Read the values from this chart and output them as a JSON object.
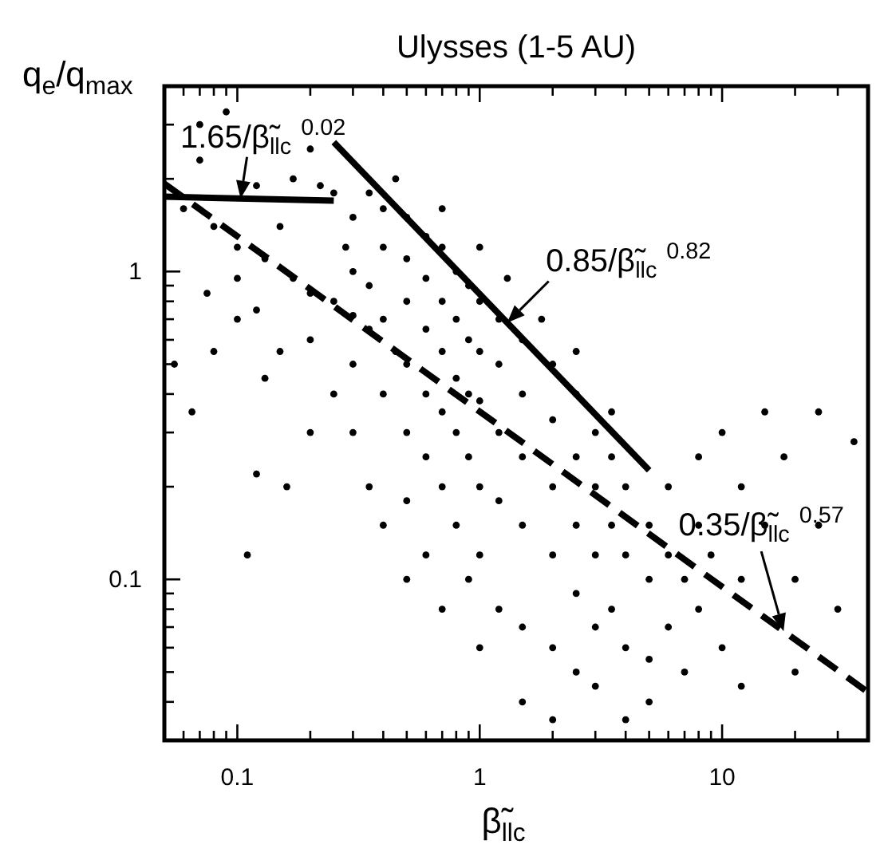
{
  "chart_data": {
    "type": "scatter",
    "title": "Ulysses (1-5 AU)",
    "xlabel": "β̃$_{llc}$",
    "ylabel": "q$_{e}$/q$_{max}$",
    "log": "xy",
    "xlim": [
      0.05,
      40
    ],
    "ylim": [
      0.03,
      4
    ],
    "xticks": [
      {
        "value": 0.06,
        "label": null
      },
      {
        "value": 0.07,
        "label": null
      },
      {
        "value": 0.08,
        "label": null
      },
      {
        "value": 0.09,
        "label": null
      },
      0.1,
      {
        "value": 0.2,
        "label": null
      },
      {
        "value": 0.3,
        "label": null
      },
      {
        "value": 0.4,
        "label": null
      },
      {
        "value": 0.5,
        "label": null
      },
      {
        "value": 0.6,
        "label": null
      },
      {
        "value": 0.7,
        "label": null
      },
      {
        "value": 0.8,
        "label": null
      },
      {
        "value": 0.9,
        "label": null
      },
      1,
      {
        "value": 2,
        "label": null
      },
      {
        "value": 3,
        "label": null
      },
      {
        "value": 4,
        "label": null
      },
      {
        "value": 5,
        "label": null
      },
      {
        "value": 6,
        "label": null
      },
      {
        "value": 7,
        "label": null
      },
      {
        "value": 8,
        "label": null
      },
      {
        "value": 9,
        "label": null
      },
      10,
      {
        "value": 20,
        "label": null
      },
      {
        "value": 30,
        "label": null
      },
      {
        "value": 40,
        "label": null
      }
    ],
    "yticks": [
      {
        "value": 0.03,
        "label": null
      },
      {
        "value": 0.04,
        "label": null
      },
      {
        "value": 0.05,
        "label": null
      },
      {
        "value": 0.06,
        "label": null
      },
      {
        "value": 0.07,
        "label": null
      },
      {
        "value": 0.08,
        "label": null
      },
      {
        "value": 0.09,
        "label": null
      },
      0.1,
      {
        "value": 0.2,
        "label": null
      },
      {
        "value": 0.3,
        "label": null
      },
      {
        "value": 0.4,
        "label": null
      },
      {
        "value": 0.5,
        "label": null
      },
      {
        "value": 0.6,
        "label": null
      },
      {
        "value": 0.7,
        "label": null
      },
      {
        "value": 0.8,
        "label": null
      },
      {
        "value": 0.9,
        "label": null
      },
      1,
      {
        "value": 2,
        "label": null
      },
      {
        "value": 3,
        "label": null
      },
      {
        "value": 4,
        "label": null
      }
    ],
    "series": [
      {
        "marker": "circle",
        "color": "#000000",
        "x": [
          0.07,
          0.09,
          0.07,
          0.12,
          0.2,
          0.17,
          0.22,
          0.15,
          0.075,
          0.08,
          0.055,
          0.065,
          0.1,
          0.1,
          0.12,
          0.13,
          0.15,
          0.2,
          0.12,
          0.16,
          0.2,
          0.25,
          0.11,
          0.06,
          0.08,
          0.1,
          0.13,
          0.17,
          0.2,
          0.25,
          0.3,
          0.35,
          0.45,
          0.3,
          0.3,
          0.3,
          0.3,
          0.35,
          0.35,
          0.35,
          0.4,
          0.4,
          0.4,
          0.4,
          0.4,
          0.5,
          0.5,
          0.5,
          0.5,
          0.5,
          0.5,
          0.5,
          0.6,
          0.6,
          0.6,
          0.6,
          0.6,
          0.6,
          0.7,
          0.7,
          0.7,
          0.7,
          0.7,
          0.7,
          0.8,
          0.8,
          0.8,
          0.8,
          0.8,
          0.9,
          0.9,
          0.9,
          0.9,
          0.9,
          1,
          1,
          1,
          1,
          1,
          1,
          1.2,
          1.2,
          1.2,
          1.2,
          1.2,
          1.5,
          1.5,
          1.5,
          1.5,
          1.5,
          1.5,
          2,
          2,
          2,
          2,
          2,
          2,
          2.5,
          2.5,
          2.5,
          2.5,
          2.5,
          3,
          3,
          3,
          3,
          3,
          3.5,
          3.5,
          3.5,
          4,
          4,
          4,
          4,
          5,
          5,
          5,
          5,
          6,
          6,
          6,
          7,
          7,
          8,
          8,
          8,
          9,
          10,
          10,
          12,
          12,
          12,
          15,
          15,
          18,
          20,
          20,
          25,
          25,
          30,
          35,
          0.25,
          0.28,
          0.45,
          0.7,
          1,
          1.3,
          1.8,
          2.5,
          3.5
        ],
        "values": [
          3.0,
          3.3,
          2.3,
          1.9,
          2.5,
          2.0,
          1.9,
          1.4,
          0.85,
          0.55,
          0.5,
          0.35,
          0.7,
          0.95,
          0.75,
          0.45,
          0.55,
          0.6,
          0.22,
          0.2,
          0.3,
          0.4,
          0.12,
          1.6,
          1.4,
          1.2,
          1.1,
          0.95,
          0.85,
          0.8,
          0.72,
          0.65,
          0.55,
          1.5,
          1.0,
          0.5,
          0.3,
          1.8,
          0.9,
          0.2,
          1.6,
          1.2,
          0.7,
          0.4,
          0.15,
          1.5,
          1.1,
          0.8,
          0.5,
          0.3,
          0.18,
          0.1,
          1.3,
          0.95,
          0.65,
          0.4,
          0.25,
          0.12,
          1.2,
          0.8,
          0.55,
          0.35,
          0.2,
          0.08,
          1.0,
          0.7,
          0.45,
          0.3,
          0.15,
          0.9,
          0.6,
          0.4,
          0.25,
          0.1,
          0.8,
          0.55,
          0.38,
          0.2,
          0.12,
          0.06,
          0.7,
          0.5,
          0.3,
          0.18,
          0.08,
          0.6,
          0.4,
          0.25,
          0.15,
          0.07,
          0.04,
          0.5,
          0.33,
          0.2,
          0.12,
          0.06,
          0.035,
          0.4,
          0.25,
          0.15,
          0.09,
          0.05,
          0.3,
          0.2,
          0.12,
          0.07,
          0.045,
          0.25,
          0.15,
          0.08,
          0.2,
          0.12,
          0.06,
          0.035,
          0.15,
          0.1,
          0.055,
          0.04,
          0.2,
          0.12,
          0.07,
          0.1,
          0.05,
          0.25,
          0.15,
          0.08,
          0.12,
          0.3,
          0.06,
          0.2,
          0.1,
          0.045,
          0.35,
          0.15,
          0.25,
          0.1,
          0.05,
          0.35,
          0.15,
          0.08,
          0.28,
          1.8,
          1.2,
          2.0,
          1.6,
          1.2,
          0.95,
          0.7,
          0.55,
          0.35
        ]
      },
      {
        "type": "line",
        "name": "0.85/β̃$_{llc}$$^{0.82}$",
        "color": "#000000",
        "line_style": "solid",
        "x": [
          0.25,
          5
        ],
        "values": [
          2.63,
          0.226
        ]
      },
      {
        "type": "line",
        "name": "1.65/β̃$_{llc}$$^{0.02}$",
        "color": "#000000",
        "line_style": "solid",
        "x": [
          0.05,
          0.25
        ],
        "values": [
          1.75,
          1.7
        ]
      },
      {
        "type": "line",
        "name": "0.35/β̃$_{llc}$$^{0.57}$",
        "color": "#000000",
        "line_style": "dashed",
        "x": [
          0.05,
          40
        ],
        "values": [
          1.93,
          0.043
        ]
      }
    ]
  }
}
